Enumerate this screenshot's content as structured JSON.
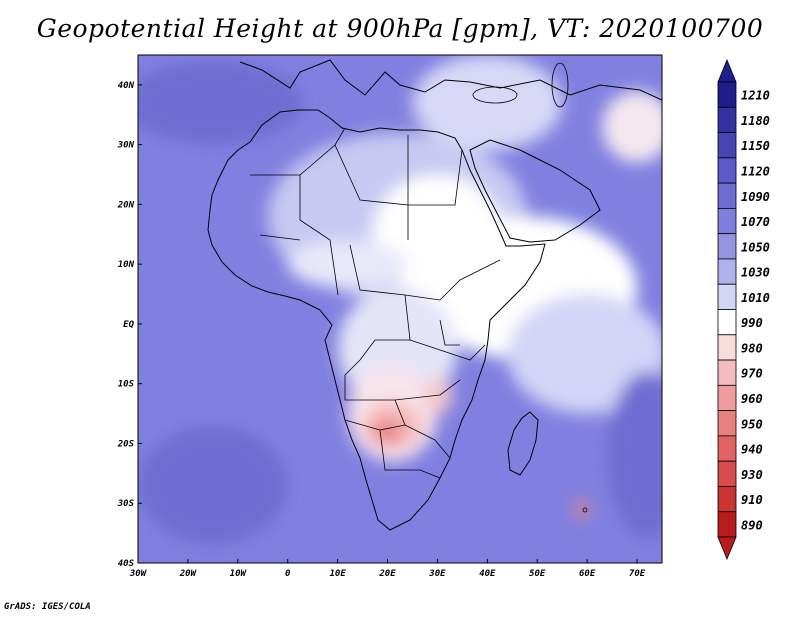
{
  "title": "Geopotential Height at 900hPa [gpm], VT: 2020100700",
  "credit": "GrADS: IGES/COLA",
  "map": {
    "lon_range": [
      -30,
      75
    ],
    "lat_range": [
      -40,
      45
    ],
    "background_color": "#8080e0",
    "coastline_color": "#000000"
  },
  "axes": {
    "x_ticks": [
      {
        "value": -30,
        "label": "30W"
      },
      {
        "value": -20,
        "label": "20W"
      },
      {
        "value": -10,
        "label": "10W"
      },
      {
        "value": 0,
        "label": "0"
      },
      {
        "value": 10,
        "label": "10E"
      },
      {
        "value": 20,
        "label": "20E"
      },
      {
        "value": 30,
        "label": "30E"
      },
      {
        "value": 40,
        "label": "40E"
      },
      {
        "value": 50,
        "label": "50E"
      },
      {
        "value": 60,
        "label": "60E"
      },
      {
        "value": 70,
        "label": "70E"
      }
    ],
    "y_ticks": [
      {
        "value": 40,
        "label": "40N"
      },
      {
        "value": 30,
        "label": "30N"
      },
      {
        "value": 20,
        "label": "20N"
      },
      {
        "value": 10,
        "label": "10N"
      },
      {
        "value": 0,
        "label": "EQ"
      },
      {
        "value": -10,
        "label": "10S"
      },
      {
        "value": -20,
        "label": "20S"
      },
      {
        "value": -30,
        "label": "30S"
      },
      {
        "value": -40,
        "label": "40S"
      }
    ]
  },
  "colorbar": {
    "levels": [
      "1210",
      "1180",
      "1150",
      "1120",
      "1090",
      "1070",
      "1050",
      "1030",
      "1010",
      "990",
      "980",
      "970",
      "960",
      "950",
      "940",
      "930",
      "910",
      "890"
    ],
    "colors": [
      "#1e1e8c",
      "#3232a0",
      "#4646b4",
      "#5a5ac8",
      "#6e6ed2",
      "#7e7edc",
      "#9494e2",
      "#b0b0ec",
      "#d4d4f6",
      "#ffffff",
      "#f8dcdc",
      "#f4bcbc",
      "#ee9c9c",
      "#e88080",
      "#e06464",
      "#d84c4c",
      "#cc3434",
      "#b81c1c"
    ]
  },
  "fields": [
    {
      "name": "n-atlantic-high",
      "lon": -18,
      "lat": 38,
      "rx": 7,
      "ry": 3,
      "color": "#3c3caa"
    },
    {
      "name": "ne-atlantic-ring",
      "lon": -15,
      "lat": 37,
      "rx": 18,
      "ry": 7,
      "color": "#6e6ed2"
    },
    {
      "name": "sahara-light",
      "lon": 22,
      "lat": 18,
      "rx": 26,
      "ry": 14,
      "color": "#c8c8f2"
    },
    {
      "name": "ne-africa-white",
      "lon": 30,
      "lat": 15,
      "rx": 13,
      "ry": 10,
      "color": "#ffffff"
    },
    {
      "name": "sahel-white",
      "lon": 12,
      "lat": 10,
      "rx": 12,
      "ry": 4,
      "color": "#e8e8fa"
    },
    {
      "name": "horn-white",
      "lon": 48,
      "lat": 6,
      "rx": 22,
      "ry": 12,
      "color": "#ffffff"
    },
    {
      "name": "indian-ocean-pale",
      "lon": 60,
      "lat": -5,
      "rx": 16,
      "ry": 10,
      "color": "#d4d4f6"
    },
    {
      "name": "central-africa-pale",
      "lon": 22,
      "lat": -4,
      "rx": 12,
      "ry": 10,
      "color": "#e4e4f8"
    },
    {
      "name": "angola-low-outer",
      "lon": 21,
      "lat": -15,
      "rx": 9,
      "ry": 8,
      "color": "#f8e4ec"
    },
    {
      "name": "angola-low-mid",
      "lon": 21,
      "lat": -17,
      "rx": 6,
      "ry": 4,
      "color": "#f4bcbc"
    },
    {
      "name": "angola-low-core",
      "lon": 20,
      "lat": -18,
      "rx": 3,
      "ry": 2,
      "color": "#e88080"
    },
    {
      "name": "zambia-low",
      "lon": 30,
      "lat": -12,
      "rx": 3,
      "ry": 3,
      "color": "#f4c8cc"
    },
    {
      "name": "mauritius-low",
      "lon": 59,
      "lat": -31,
      "rx": 1.5,
      "ry": 1.5,
      "color": "#e88080"
    },
    {
      "name": "se-atlantic-high",
      "lon": -15,
      "lat": -27,
      "rx": 15,
      "ry": 10,
      "color": "#6e6ed2"
    },
    {
      "name": "se-indian-high",
      "lon": 72,
      "lat": -22,
      "rx": 8,
      "ry": 14,
      "color": "#6e6ed2"
    },
    {
      "name": "europe-pale",
      "lon": 40,
      "lat": 37,
      "rx": 15,
      "ry": 8,
      "color": "#d8d8f6"
    },
    {
      "name": "middle-east-pale",
      "lon": 70,
      "lat": 33,
      "rx": 7,
      "ry": 6,
      "color": "#f4e8f0"
    }
  ]
}
